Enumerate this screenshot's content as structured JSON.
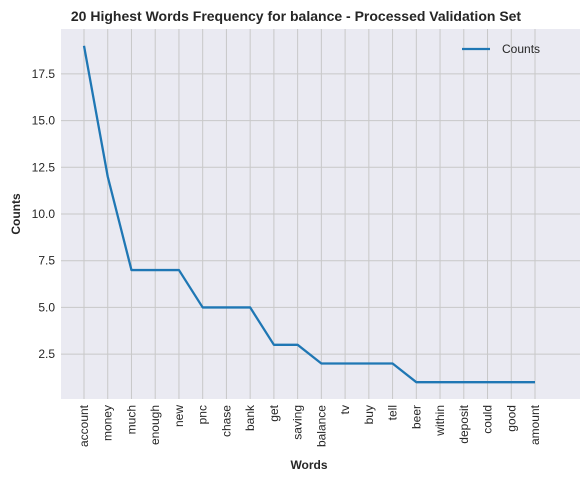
{
  "chart_data": {
    "type": "line",
    "title": "20 Highest Words Frequency for balance - Processed Validation Set",
    "xlabel": "Words",
    "ylabel": "Counts",
    "categories": [
      "account",
      "money",
      "much",
      "enough",
      "new",
      "pnc",
      "chase",
      "bank",
      "get",
      "saving",
      "balance",
      "tv",
      "buy",
      "tell",
      "beer",
      "within",
      "deposit",
      "could",
      "good",
      "amount"
    ],
    "series": [
      {
        "name": "Counts",
        "values": [
          19,
          12,
          7,
          7,
          7,
          5,
          5,
          5,
          3,
          3,
          2,
          2,
          2,
          2,
          1,
          1,
          1,
          1,
          1,
          1
        ]
      }
    ],
    "ylim": [
      0.1,
      19.9
    ],
    "yticks": [
      2.5,
      5.0,
      7.5,
      10.0,
      12.5,
      15.0,
      17.5
    ],
    "ytick_labels": [
      "2.5",
      "5.0",
      "7.5",
      "10.0",
      "12.5",
      "15.0",
      "17.5"
    ],
    "grid": true,
    "legend_position": "top-right",
    "colors": {
      "line": "#1f77b4",
      "plot_background": "#eaeaf2",
      "grid": "#c8c8c8"
    }
  }
}
